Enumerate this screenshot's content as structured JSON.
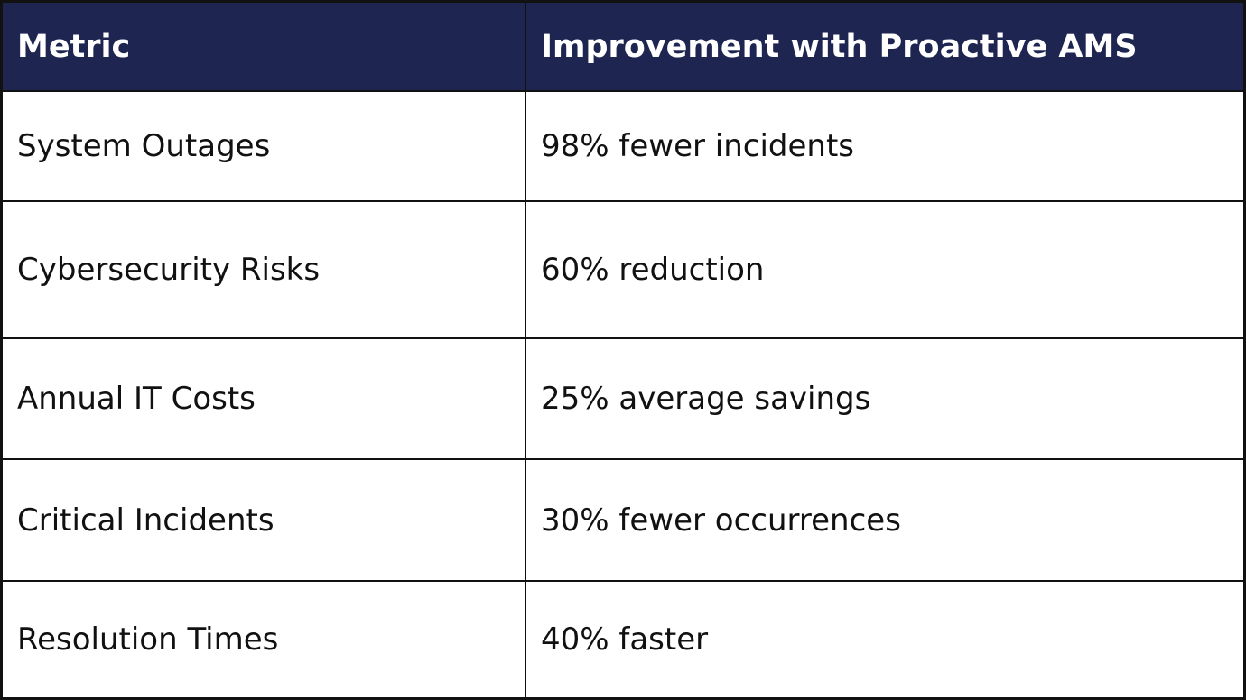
{
  "table": {
    "header": [
      "Metric",
      "Improvement with Proactive AMS"
    ],
    "rows": [
      [
        "System Outages",
        "98% fewer incidents"
      ],
      [
        "Cybersecurity Risks",
        "60% reduction"
      ],
      [
        "Annual IT Costs",
        "25% average savings"
      ],
      [
        "Critical Incidents",
        "30% fewer occurrences"
      ],
      [
        "Resolution Times",
        "40% faster"
      ]
    ]
  }
}
